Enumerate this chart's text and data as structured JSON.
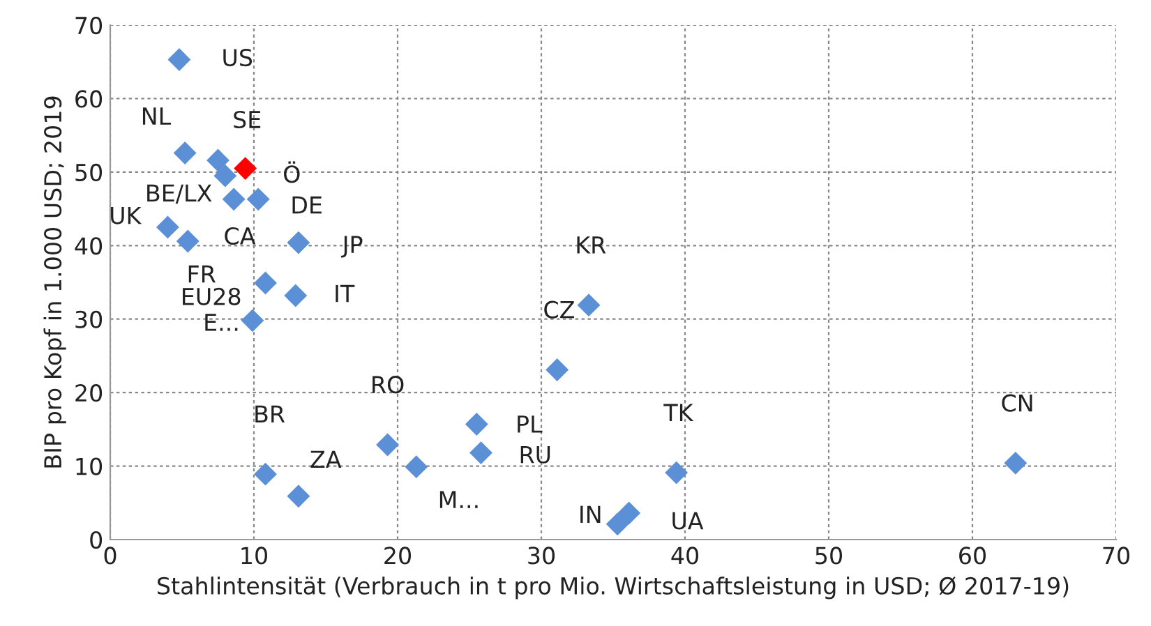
{
  "chart_data": {
    "type": "scatter",
    "xlabel": "Stahlintensität (Verbrauch in t pro Mio. Wirtschaftsleistung in USD; Ø 2017-19)",
    "ylabel": "BIP pro Kopf in 1.000 USD; 2019",
    "x": [
      4.8,
      5.2,
      7.5,
      9.4,
      8.0,
      8.6,
      10.3,
      4.0,
      5.4,
      13.1,
      10.8,
      12.9,
      9.9,
      10.8,
      13.1,
      19.3,
      21.3,
      25.5,
      25.8,
      33.3,
      31.1,
      39.4,
      35.3,
      36.1,
      63.0
    ],
    "values": [
      65.3,
      52.6,
      51.6,
      50.5,
      49.5,
      46.3,
      46.3,
      42.5,
      40.6,
      40.4,
      34.9,
      33.2,
      29.8,
      8.9,
      5.9,
      12.9,
      9.9,
      15.7,
      11.8,
      31.9,
      23.1,
      9.1,
      2.1,
      3.6,
      10.4
    ],
    "colors": [
      "#5b8fd6",
      "#5b8fd6",
      "#5b8fd6",
      "#ff0000",
      "#5b8fd6",
      "#5b8fd6",
      "#5b8fd6",
      "#5b8fd6",
      "#5b8fd6",
      "#5b8fd6",
      "#5b8fd6",
      "#5b8fd6",
      "#5b8fd6",
      "#5b8fd6",
      "#5b8fd6",
      "#5b8fd6",
      "#5b8fd6",
      "#5b8fd6",
      "#5b8fd6",
      "#5b8fd6",
      "#5b8fd6",
      "#5b8fd6",
      "#5b8fd6",
      "#5b8fd6",
      "#5b8fd6"
    ],
    "marker": "diamond",
    "xlim": [
      0,
      70
    ],
    "ylim": [
      0,
      70
    ],
    "xticks": [
      0,
      10,
      20,
      30,
      40,
      50,
      60,
      70
    ],
    "yticks": [
      0,
      10,
      20,
      30,
      40,
      50,
      60,
      70
    ],
    "grid": true,
    "annotations": [
      {
        "text": "US",
        "x": 4.8,
        "y": 65.3
      },
      {
        "text": "NL",
        "x": 5.2,
        "y": 52.6
      },
      {
        "text": "SE",
        "x": 7.5,
        "y": 51.6
      },
      {
        "text": "Ö",
        "x": 9.4,
        "y": 50.5
      },
      {
        "text": "BE/LX",
        "x": 8.0,
        "y": 49.5
      },
      {
        "text": "CA",
        "x": 8.6,
        "y": 46.3
      },
      {
        "text": "DE",
        "x": 10.3,
        "y": 46.3
      },
      {
        "text": "UK",
        "x": 4.0,
        "y": 42.5
      },
      {
        "text": "FR",
        "x": 5.4,
        "y": 40.6
      },
      {
        "text": "JP",
        "x": 13.1,
        "y": 40.4
      },
      {
        "text": "EU28",
        "x": 10.8,
        "y": 34.9
      },
      {
        "text": "IT",
        "x": 12.9,
        "y": 33.2
      },
      {
        "text": "E...",
        "x": 9.9,
        "y": 29.8
      },
      {
        "text": "BR",
        "x": 10.8,
        "y": 8.9
      },
      {
        "text": "ZA",
        "x": 13.1,
        "y": 5.9
      },
      {
        "text": "RO",
        "x": 19.3,
        "y": 12.9
      },
      {
        "text": "M...",
        "x": 21.3,
        "y": 9.9
      },
      {
        "text": "PL",
        "x": 25.5,
        "y": 15.7
      },
      {
        "text": "RU",
        "x": 25.8,
        "y": 11.8
      },
      {
        "text": "KR",
        "x": 33.3,
        "y": 31.9
      },
      {
        "text": "CZ",
        "x": 31.1,
        "y": 23.1
      },
      {
        "text": "TK",
        "x": 39.4,
        "y": 9.1
      },
      {
        "text": "IN",
        "x": 35.3,
        "y": 2.1
      },
      {
        "text": "UA",
        "x": 36.1,
        "y": 3.6
      },
      {
        "text": "CN",
        "x": 63.0,
        "y": 10.4
      }
    ]
  }
}
